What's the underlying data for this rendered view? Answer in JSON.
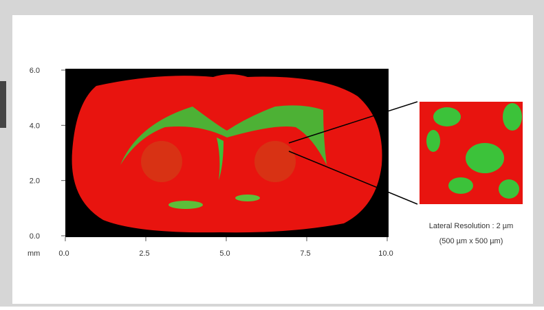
{
  "main_image": {
    "x_unit": "mm",
    "xticks": [
      "0.0",
      "2.5",
      "5.0",
      "7.5",
      "10.0"
    ],
    "yticks": [
      "0.0",
      "2.0",
      "4.0",
      "6.0"
    ]
  },
  "inset": {
    "caption_line1": "Lateral Resolution : 2 µm",
    "caption_line2": "(500 µm x 500 µm)"
  }
}
